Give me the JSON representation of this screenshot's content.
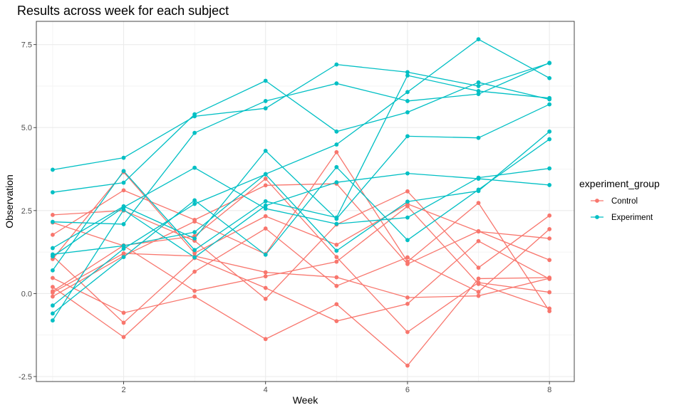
{
  "chart_data": {
    "type": "line",
    "title": "Results across week for each subject",
    "xlabel": "Week",
    "ylabel": "Observation",
    "x": [
      1,
      2,
      3,
      4,
      5,
      6,
      7,
      8
    ],
    "xlim": [
      0.77,
      8.35
    ],
    "ylim": [
      -2.65,
      8.2
    ],
    "xticks": [
      2,
      4,
      6,
      8
    ],
    "yticks": [
      -2.5,
      0.0,
      2.5,
      5.0,
      7.5
    ],
    "ytick_labels": [
      "-2.5",
      "0.0",
      "2.5",
      "5.0",
      "7.5"
    ],
    "grid": true,
    "legend": {
      "title": "experiment_group",
      "position": "right",
      "entries": [
        {
          "label": "Control",
          "color": "#F8766D"
        },
        {
          "label": "Experiment",
          "color": "#00BFC4"
        }
      ]
    },
    "series": [
      {
        "group": "Control",
        "values": [
          0.2,
          -1.31,
          0.66,
          1.96,
          0.23,
          1.09,
          0.05,
          1.94
        ]
      },
      {
        "group": "Control",
        "values": [
          1.13,
          -0.88,
          1.07,
          0.17,
          -0.83,
          -0.31,
          1.58,
          0.44
        ]
      },
      {
        "group": "Control",
        "values": [
          1.77,
          3.11,
          2.22,
          3.26,
          3.31,
          0.89,
          1.88,
          1.01
        ]
      },
      {
        "group": "Control",
        "values": [
          1.04,
          3.66,
          1.22,
          2.33,
          1.47,
          2.7,
          1.87,
          1.66
        ]
      },
      {
        "group": "Control",
        "values": [
          0.47,
          -0.58,
          -0.09,
          -1.37,
          -0.32,
          -2.17,
          0.45,
          0.48
        ]
      },
      {
        "group": "Control",
        "values": [
          2.37,
          2.5,
          1.59,
          -0.16,
          2.08,
          3.08,
          0.78,
          2.35
        ]
      },
      {
        "group": "Control",
        "values": [
          0.03,
          1.21,
          1.13,
          0.64,
          0.49,
          -0.12,
          -0.07,
          0.46
        ]
      },
      {
        "group": "Control",
        "values": [
          -0.09,
          1.13,
          2.17,
          1.19,
          4.26,
          0.96,
          2.73,
          -0.53
        ]
      },
      {
        "group": "Control",
        "values": [
          2.14,
          1.44,
          0.08,
          0.52,
          0.96,
          2.63,
          0.29,
          -0.45
        ]
      },
      {
        "group": "Control",
        "values": [
          0.07,
          1.45,
          1.73,
          3.46,
          1.1,
          -1.16,
          0.33,
          0.04
        ]
      },
      {
        "group": "Experiment",
        "values": [
          0.7,
          3.69,
          1.31,
          2.78,
          2.29,
          6.57,
          6.1,
          5.89
        ]
      },
      {
        "group": "Experiment",
        "values": [
          -0.81,
          2.52,
          1.09,
          2.65,
          3.35,
          3.62,
          3.46,
          3.27
        ]
      },
      {
        "group": "Experiment",
        "values": [
          3.73,
          4.09,
          5.34,
          5.58,
          6.9,
          6.67,
          6.25,
          6.94
        ]
      },
      {
        "group": "Experiment",
        "values": [
          1.12,
          2.6,
          3.79,
          2.56,
          2.1,
          2.29,
          3.49,
          3.77
        ]
      },
      {
        "group": "Experiment",
        "values": [
          -0.36,
          1.35,
          2.7,
          3.59,
          1.29,
          2.77,
          3.09,
          4.88
        ]
      },
      {
        "group": "Experiment",
        "values": [
          3.05,
          3.34,
          5.4,
          6.41,
          4.88,
          5.46,
          6.36,
          5.85
        ]
      },
      {
        "group": "Experiment",
        "values": [
          1.37,
          2.63,
          1.66,
          4.3,
          2.25,
          4.74,
          4.69,
          5.7
        ]
      },
      {
        "group": "Experiment",
        "values": [
          1.18,
          1.44,
          1.85,
          3.6,
          4.49,
          6.07,
          7.66,
          6.49
        ]
      },
      {
        "group": "Experiment",
        "values": [
          2.16,
          2.09,
          4.84,
          5.8,
          6.33,
          5.8,
          6.01,
          6.95
        ]
      },
      {
        "group": "Experiment",
        "values": [
          -0.6,
          1.1,
          2.81,
          1.17,
          3.81,
          1.61,
          3.13,
          4.65
        ]
      }
    ]
  }
}
